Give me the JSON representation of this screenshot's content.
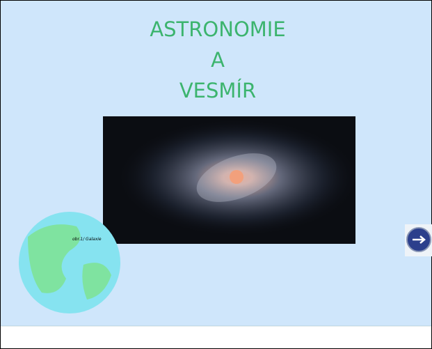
{
  "slide": {
    "title_lines": [
      "ASTRONOMIE",
      "A",
      "VESMÍR"
    ],
    "image_caption": "obr.1/ Galaxie"
  }
}
